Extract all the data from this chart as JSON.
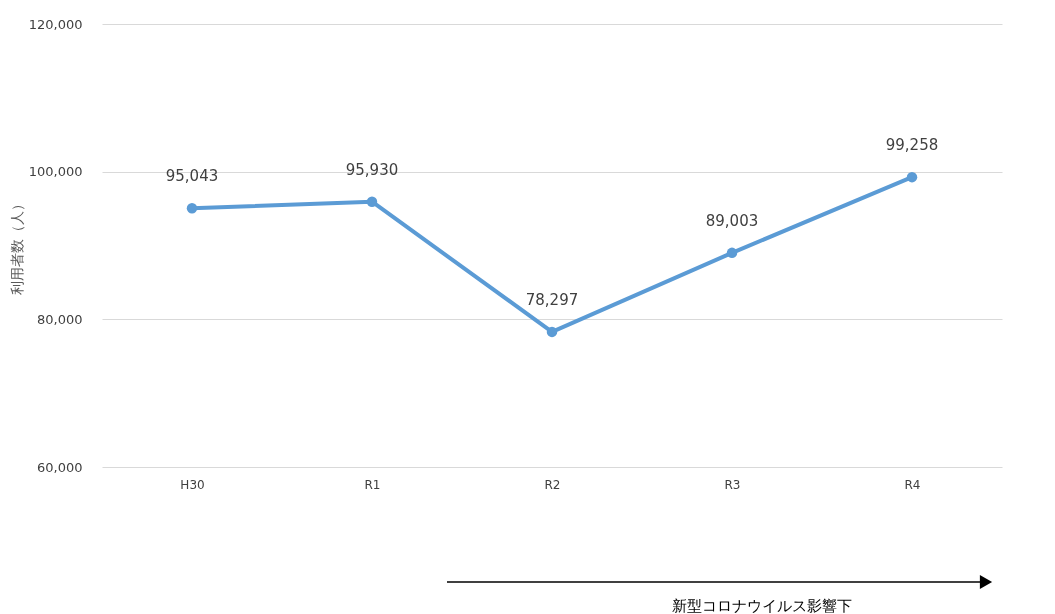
{
  "chart_data": {
    "type": "line",
    "ylabel": "利用者数（人）",
    "categories": [
      "H30",
      "R1",
      "R2",
      "R3",
      "R4"
    ],
    "series": [
      {
        "color": "#5b9bd5",
        "values": [
          95043,
          95930,
          78297,
          89003,
          99258
        ],
        "value_labels": [
          "95,043",
          "95,930",
          "78,297",
          "89,003",
          "99,258"
        ]
      }
    ],
    "ylim": [
      60000,
      120000
    ],
    "yticks": [
      {
        "value": 60000,
        "label": "60,000"
      },
      {
        "value": 80000,
        "label": "80,000"
      },
      {
        "value": 100000,
        "label": "100,000"
      },
      {
        "value": 120000,
        "label": "120,000"
      }
    ],
    "grid": "y",
    "marker": "circle",
    "line_style": "solid",
    "annotations": [
      "新型コロナウイルス影響下"
    ]
  }
}
